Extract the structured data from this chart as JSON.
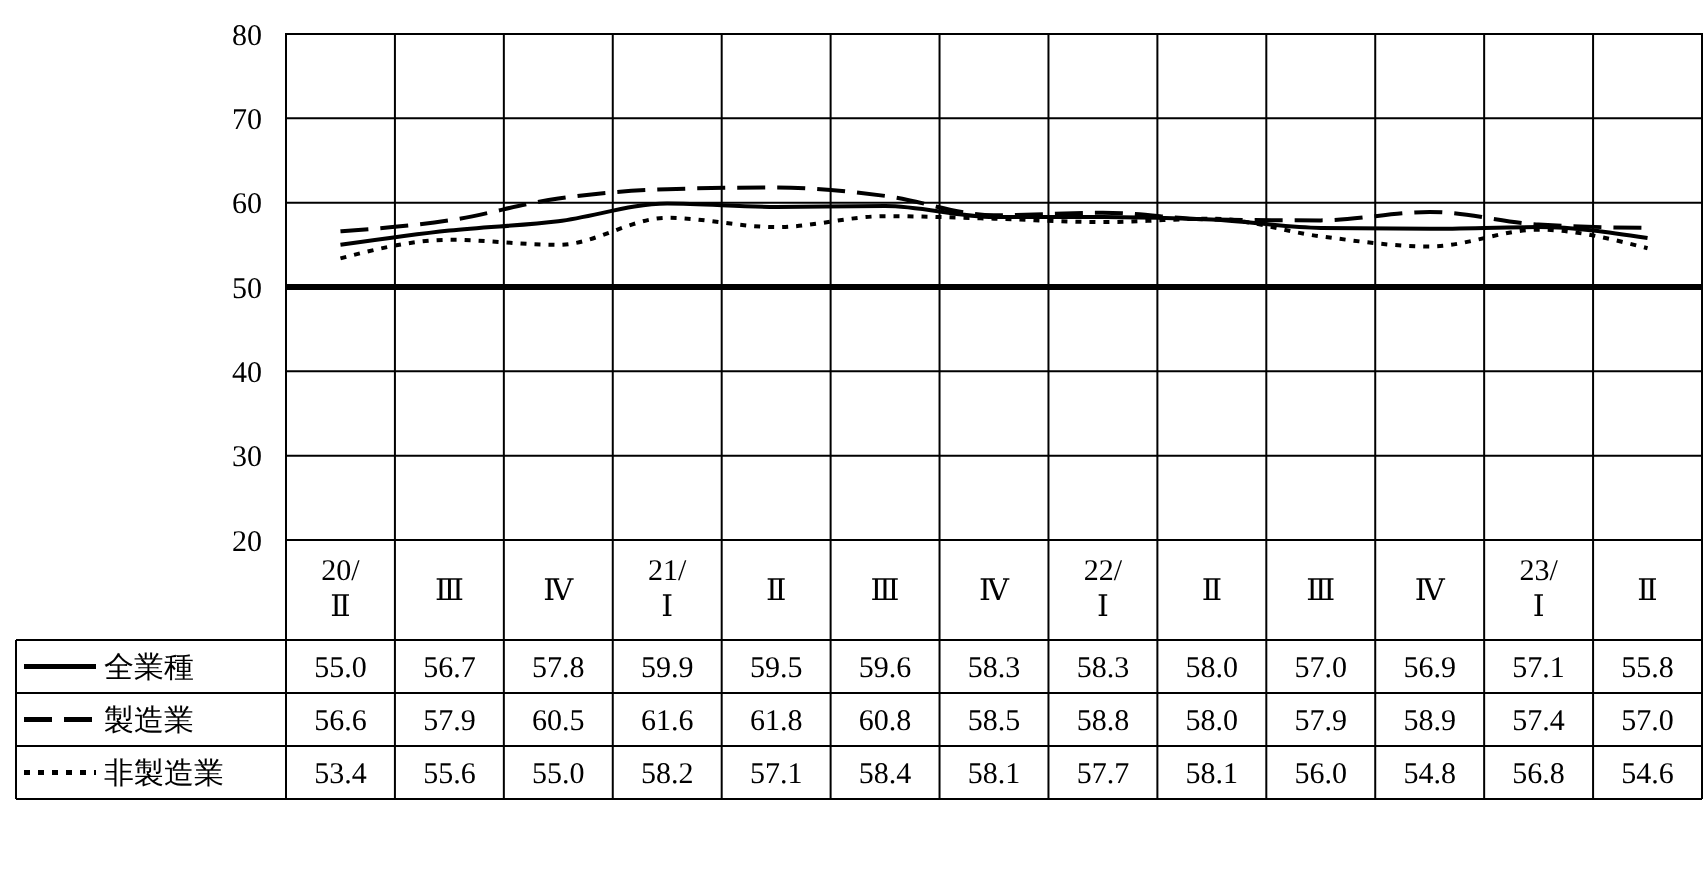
{
  "chart_data": {
    "type": "line",
    "categories": [
      "20/Ⅱ",
      "Ⅲ",
      "Ⅳ",
      "21/Ⅰ",
      "Ⅱ",
      "Ⅲ",
      "Ⅳ",
      "22/Ⅰ",
      "Ⅱ",
      "Ⅲ",
      "Ⅳ",
      "23/Ⅰ",
      "Ⅱ"
    ],
    "series": [
      {
        "name": "全業種",
        "color": "#000000",
        "line_style": "solid",
        "values": [
          55.0,
          56.7,
          57.8,
          59.9,
          59.5,
          59.6,
          58.3,
          58.3,
          58.0,
          57.0,
          56.9,
          57.1,
          55.8
        ],
        "value_labels": [
          "55.0",
          "56.7",
          "57.8",
          "59.9",
          "59.5",
          "59.6",
          "58.3",
          "58.3",
          "58.0",
          "57.0",
          "56.9",
          "57.1",
          "55.8"
        ]
      },
      {
        "name": "製造業",
        "color": "#000000",
        "line_style": "dashed",
        "values": [
          56.6,
          57.9,
          60.5,
          61.6,
          61.8,
          60.8,
          58.5,
          58.8,
          58.0,
          57.9,
          58.9,
          57.4,
          57.0
        ],
        "value_labels": [
          "56.6",
          "57.9",
          "60.5",
          "61.6",
          "61.8",
          "60.8",
          "58.5",
          "58.8",
          "58.0",
          "57.9",
          "58.9",
          "57.4",
          "57.0"
        ]
      },
      {
        "name": "非製造業",
        "color": "#000000",
        "line_style": "dotted",
        "values": [
          53.4,
          55.6,
          55.0,
          58.2,
          57.1,
          58.4,
          58.1,
          57.7,
          58.1,
          56.0,
          54.8,
          56.8,
          54.6
        ],
        "value_labels": [
          "53.4",
          "55.6",
          "55.0",
          "58.2",
          "57.1",
          "58.4",
          "58.1",
          "57.7",
          "58.1",
          "56.0",
          "54.8",
          "56.8",
          "54.6"
        ]
      }
    ],
    "ylim": [
      20,
      80
    ],
    "yticks": [
      20,
      30,
      40,
      50,
      60,
      70,
      80
    ],
    "grid": true,
    "legend": "bottom",
    "ref_lines": [
      {
        "axis": "y",
        "value": 50,
        "color": "#000000"
      }
    ]
  }
}
